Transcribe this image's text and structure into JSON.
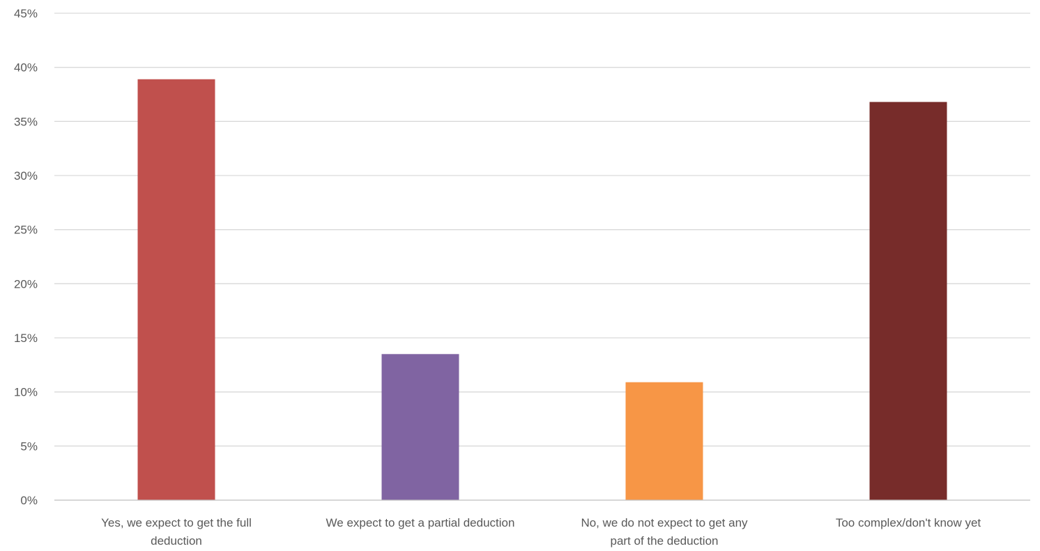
{
  "chart_data": {
    "type": "bar",
    "title": "",
    "xlabel": "",
    "ylabel": "",
    "ylim": [
      0,
      45
    ],
    "y_tick_step": 5,
    "y_tick_format": "percent",
    "grid": true,
    "legend": "none",
    "categories": [
      "Yes, we expect to get the full deduction",
      "We expect to get a partial deduction",
      "No, we do not expect to get any part of the deduction",
      "Too complex/don't know yet"
    ],
    "category_label_lines": [
      [
        "Yes, we expect to get the full",
        "deduction"
      ],
      [
        "We expect to get a partial deduction"
      ],
      [
        "No, we do not expect to get any",
        "part of the deduction"
      ],
      [
        "Too complex/don't know yet"
      ]
    ],
    "values": [
      38.9,
      13.5,
      10.9,
      36.8
    ],
    "bar_colors": [
      "#C0504D",
      "#8064A2",
      "#F79646",
      "#772C2A"
    ],
    "y_tick_labels": [
      "0%",
      "5%",
      "10%",
      "15%",
      "20%",
      "25%",
      "30%",
      "35%",
      "40%",
      "45%"
    ]
  },
  "colors": {
    "gridline": "#D9D9D9",
    "axis_line": "#BFBFBF",
    "text": "#595959"
  }
}
